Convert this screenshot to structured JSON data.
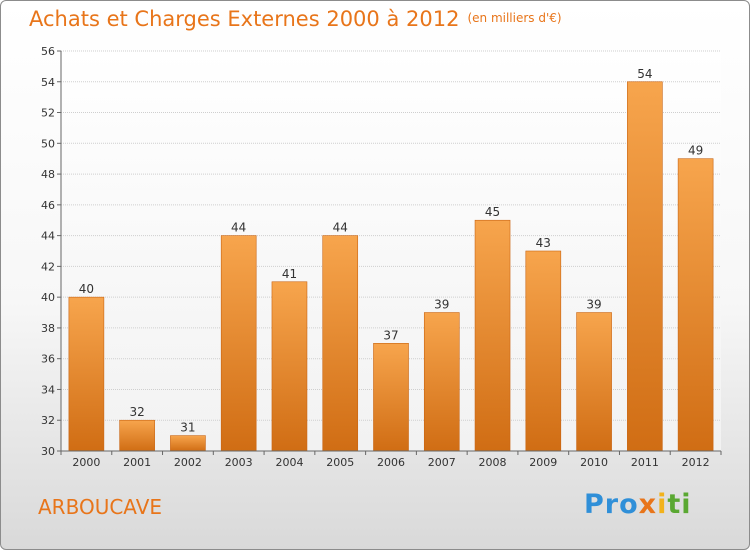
{
  "title": "Achats et Charges Externes 2000 à 2012",
  "unit_note": "(en milliers d'€)",
  "commune": "ARBOUCAVE",
  "brand": [
    "Pro",
    "x",
    "i",
    "ti"
  ],
  "colors": {
    "accent": "#e8751a",
    "bar_top": "#f7a54d",
    "bar_bottom": "#d06d14"
  },
  "chart_data": {
    "type": "bar",
    "title": "Achats et Charges Externes 2000 à 2012",
    "subtitle": "(en milliers d'€)",
    "categories": [
      "2000",
      "2001",
      "2002",
      "2003",
      "2004",
      "2005",
      "2006",
      "2007",
      "2008",
      "2009",
      "2010",
      "2011",
      "2012"
    ],
    "values": [
      40,
      32,
      31,
      44,
      41,
      44,
      37,
      39,
      45,
      43,
      39,
      54,
      49
    ],
    "ylim": [
      30,
      56
    ],
    "yticks": [
      30,
      32,
      34,
      36,
      38,
      40,
      42,
      44,
      46,
      48,
      50,
      52,
      54,
      56
    ],
    "grid": true,
    "legend": "none"
  }
}
